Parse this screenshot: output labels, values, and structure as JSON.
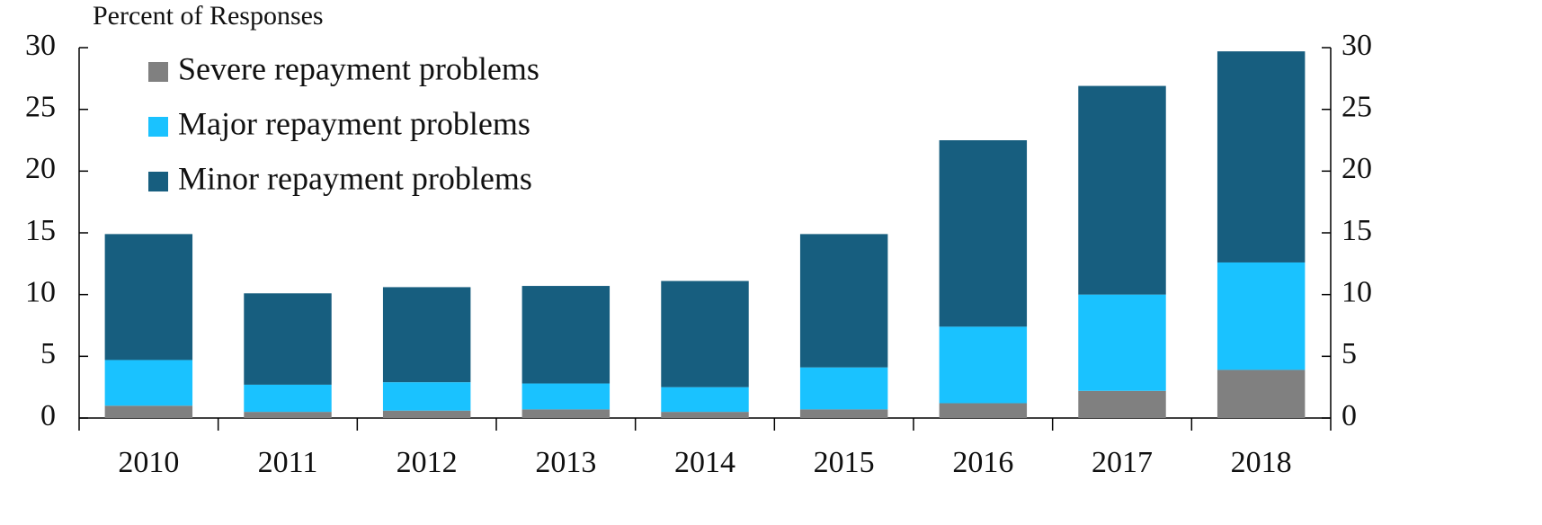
{
  "chart_data": {
    "type": "stacked_bar",
    "y_label": "Percent of Responses",
    "categories": [
      "2010",
      "2011",
      "2012",
      "2013",
      "2014",
      "2015",
      "2016",
      "2017",
      "2018"
    ],
    "series": [
      {
        "name": "Severe repayment problems",
        "color": "#808080",
        "values": [
          1.0,
          0.5,
          0.6,
          0.7,
          0.5,
          0.7,
          1.2,
          2.2,
          3.9
        ]
      },
      {
        "name": "Major repayment problems",
        "color": "#1ac2ff",
        "values": [
          3.7,
          2.2,
          2.3,
          2.1,
          2.0,
          3.4,
          6.2,
          7.8,
          8.7
        ]
      },
      {
        "name": "Minor repayment problems",
        "color": "#175e7f",
        "values": [
          10.2,
          7.4,
          7.7,
          7.9,
          8.6,
          10.8,
          15.1,
          16.9,
          17.1
        ]
      }
    ],
    "ylim": [
      0,
      30
    ],
    "yticks": [
      0,
      5,
      10,
      15,
      20,
      25,
      30
    ],
    "y2lim": [
      0,
      30
    ],
    "y2ticks": [
      0,
      5,
      10,
      15,
      20,
      25,
      30
    ],
    "legend": "upper left"
  }
}
